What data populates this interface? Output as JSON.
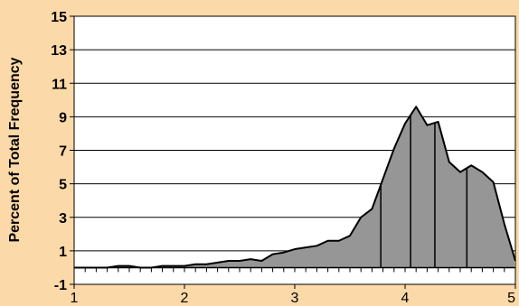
{
  "chart_data": {
    "type": "area",
    "title": "",
    "xlabel": "",
    "ylabel": "Percent of Total Frequency",
    "xlim": [
      1,
      5
    ],
    "ylim": [
      -1,
      15
    ],
    "x_ticks": [
      1,
      2,
      3,
      4,
      5
    ],
    "y_ticks": [
      -1,
      1,
      3,
      5,
      7,
      9,
      11,
      13,
      15
    ],
    "x_minor_step": 0.1,
    "grid": "horizontal",
    "legend": "none",
    "colors": {
      "background": "#FCD9A8",
      "plot_area": "#FFFFFF",
      "fill": "#969696",
      "line": "#000000"
    },
    "x": [
      1.0,
      1.1,
      1.2,
      1.3,
      1.4,
      1.5,
      1.6,
      1.7,
      1.8,
      1.9,
      2.0,
      2.1,
      2.2,
      2.3,
      2.4,
      2.5,
      2.6,
      2.7,
      2.8,
      2.9,
      3.0,
      3.1,
      3.2,
      3.3,
      3.4,
      3.5,
      3.6,
      3.7,
      3.8,
      3.9,
      4.0,
      4.1,
      4.2,
      4.3,
      4.4,
      4.5,
      4.6,
      4.7,
      4.8,
      4.9,
      5.0
    ],
    "y": [
      0.0,
      0.0,
      0.0,
      0.0,
      0.1,
      0.1,
      0.0,
      0.0,
      0.1,
      0.1,
      0.1,
      0.2,
      0.2,
      0.3,
      0.4,
      0.4,
      0.5,
      0.4,
      0.8,
      0.9,
      1.1,
      1.2,
      1.3,
      1.6,
      1.6,
      1.9,
      3.0,
      3.5,
      5.3,
      7.1,
      8.6,
      9.6,
      8.5,
      8.7,
      6.3,
      5.7,
      6.1,
      5.7,
      5.1,
      2.6,
      0.4
    ],
    "vertical_markers_x": [
      3.78,
      4.05,
      4.27,
      4.56
    ]
  }
}
